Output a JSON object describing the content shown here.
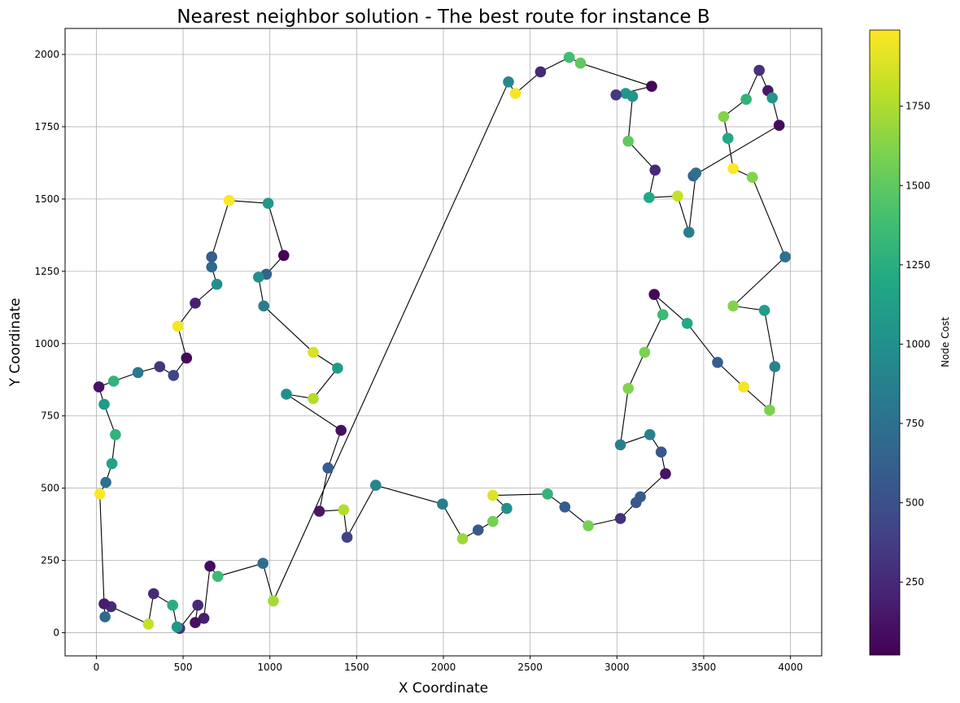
{
  "chart_data": {
    "type": "scatter",
    "title": "Nearest neighbor solution - The best route for instance B",
    "xlabel": "X Coordinate",
    "ylabel": "Y Coordinate",
    "xlim": [
      -180,
      4180
    ],
    "ylim": [
      -80,
      2090
    ],
    "xticks": [
      0,
      500,
      1000,
      1500,
      2000,
      2500,
      3000,
      3500,
      4000
    ],
    "yticks": [
      0,
      250,
      500,
      750,
      1000,
      1250,
      1500,
      1750,
      2000
    ],
    "grid": true,
    "colorbar": {
      "label": "Node Cost",
      "colormap": "viridis",
      "range": [
        20,
        1990
      ],
      "ticks": [
        250,
        500,
        750,
        1000,
        1250,
        1500,
        1750
      ]
    },
    "route": [
      [
        1020,
        110
      ],
      [
        960,
        240
      ],
      [
        700,
        195
      ],
      [
        655,
        230
      ],
      [
        620,
        50
      ],
      [
        570,
        35
      ],
      [
        585,
        95
      ],
      [
        480,
        15
      ],
      [
        465,
        20
      ],
      [
        440,
        95
      ],
      [
        330,
        135
      ],
      [
        300,
        30
      ],
      [
        85,
        90
      ],
      [
        50,
        55
      ],
      [
        45,
        100
      ],
      [
        20,
        480
      ],
      [
        55,
        520
      ],
      [
        90,
        585
      ],
      [
        110,
        685
      ],
      [
        45,
        790
      ],
      [
        15,
        850
      ],
      [
        100,
        870
      ],
      [
        240,
        900
      ],
      [
        365,
        920
      ],
      [
        445,
        890
      ],
      [
        520,
        950
      ],
      [
        470,
        1060
      ],
      [
        570,
        1140
      ],
      [
        695,
        1205
      ],
      [
        665,
        1265
      ],
      [
        665,
        1300
      ],
      [
        765,
        1495
      ],
      [
        990,
        1485
      ],
      [
        1080,
        1305
      ],
      [
        980,
        1240
      ],
      [
        935,
        1230
      ],
      [
        965,
        1130
      ],
      [
        1250,
        970
      ],
      [
        1390,
        915
      ],
      [
        1250,
        810
      ],
      [
        1095,
        825
      ],
      [
        1410,
        700
      ],
      [
        1335,
        570
      ],
      [
        1285,
        420
      ],
      [
        1425,
        425
      ],
      [
        1445,
        330
      ],
      [
        1610,
        510
      ],
      [
        1995,
        445
      ],
      [
        2110,
        325
      ],
      [
        2200,
        355
      ],
      [
        2285,
        385
      ],
      [
        2365,
        430
      ],
      [
        2285,
        475
      ],
      [
        2600,
        480
      ],
      [
        2700,
        435
      ],
      [
        2835,
        370
      ],
      [
        3020,
        395
      ],
      [
        3110,
        450
      ],
      [
        3135,
        470
      ],
      [
        3280,
        550
      ],
      [
        3255,
        625
      ],
      [
        3190,
        685
      ],
      [
        3020,
        650
      ],
      [
        3065,
        845
      ],
      [
        3160,
        970
      ],
      [
        3265,
        1100
      ],
      [
        3215,
        1170
      ],
      [
        3405,
        1070
      ],
      [
        3580,
        935
      ],
      [
        3730,
        850
      ],
      [
        3880,
        770
      ],
      [
        3910,
        920
      ],
      [
        3850,
        1115
      ],
      [
        3670,
        1130
      ],
      [
        3970,
        1300
      ],
      [
        3780,
        1575
      ],
      [
        3670,
        1605
      ],
      [
        3640,
        1710
      ],
      [
        3615,
        1785
      ],
      [
        3745,
        1845
      ],
      [
        3820,
        1945
      ],
      [
        3870,
        1875
      ],
      [
        3895,
        1850
      ],
      [
        3935,
        1755
      ],
      [
        3440,
        1580
      ],
      [
        3455,
        1590
      ],
      [
        3415,
        1385
      ],
      [
        3350,
        1510
      ],
      [
        3185,
        1505
      ],
      [
        3220,
        1600
      ],
      [
        3065,
        1700
      ],
      [
        3090,
        1855
      ],
      [
        3050,
        1865
      ],
      [
        2995,
        1860
      ],
      [
        3200,
        1890
      ],
      [
        2790,
        1970
      ],
      [
        2725,
        1990
      ],
      [
        2560,
        1940
      ],
      [
        2415,
        1865
      ],
      [
        2375,
        1905
      ],
      [
        1020,
        110
      ]
    ],
    "points": [
      {
        "x": 1020,
        "y": 110,
        "cost": 1720
      },
      {
        "x": 960,
        "y": 240,
        "cost": 720
      },
      {
        "x": 700,
        "y": 195,
        "cost": 1350
      },
      {
        "x": 655,
        "y": 230,
        "cost": 80
      },
      {
        "x": 620,
        "y": 50,
        "cost": 180
      },
      {
        "x": 570,
        "y": 35,
        "cost": 90
      },
      {
        "x": 585,
        "y": 95,
        "cost": 250
      },
      {
        "x": 480,
        "y": 15,
        "cost": 300
      },
      {
        "x": 465,
        "y": 20,
        "cost": 1050
      },
      {
        "x": 440,
        "y": 95,
        "cost": 1250
      },
      {
        "x": 330,
        "y": 135,
        "cost": 260
      },
      {
        "x": 300,
        "y": 30,
        "cost": 1820
      },
      {
        "x": 85,
        "y": 90,
        "cost": 260
      },
      {
        "x": 50,
        "y": 55,
        "cost": 700
      },
      {
        "x": 45,
        "y": 100,
        "cost": 180
      },
      {
        "x": 20,
        "y": 480,
        "cost": 1980
      },
      {
        "x": 55,
        "y": 520,
        "cost": 750
      },
      {
        "x": 90,
        "y": 585,
        "cost": 1150
      },
      {
        "x": 110,
        "y": 685,
        "cost": 1300
      },
      {
        "x": 45,
        "y": 790,
        "cost": 1100
      },
      {
        "x": 15,
        "y": 850,
        "cost": 120
      },
      {
        "x": 100,
        "y": 870,
        "cost": 1300
      },
      {
        "x": 240,
        "y": 900,
        "cost": 800
      },
      {
        "x": 365,
        "y": 920,
        "cost": 330
      },
      {
        "x": 445,
        "y": 890,
        "cost": 420
      },
      {
        "x": 520,
        "y": 950,
        "cost": 60
      },
      {
        "x": 470,
        "y": 1060,
        "cost": 1960
      },
      {
        "x": 570,
        "y": 1140,
        "cost": 200
      },
      {
        "x": 695,
        "y": 1205,
        "cost": 1000
      },
      {
        "x": 665,
        "y": 1265,
        "cost": 700
      },
      {
        "x": 665,
        "y": 1300,
        "cost": 600
      },
      {
        "x": 765,
        "y": 1495,
        "cost": 1980
      },
      {
        "x": 990,
        "y": 1485,
        "cost": 1050
      },
      {
        "x": 1080,
        "y": 1305,
        "cost": 40
      },
      {
        "x": 980,
        "y": 1240,
        "cost": 640
      },
      {
        "x": 935,
        "y": 1230,
        "cost": 1000
      },
      {
        "x": 965,
        "y": 1130,
        "cost": 850
      },
      {
        "x": 1250,
        "y": 970,
        "cost": 1870
      },
      {
        "x": 1390,
        "y": 915,
        "cost": 1100
      },
      {
        "x": 1250,
        "y": 810,
        "cost": 1760
      },
      {
        "x": 1095,
        "y": 825,
        "cost": 1000
      },
      {
        "x": 1410,
        "y": 700,
        "cost": 100
      },
      {
        "x": 1335,
        "y": 570,
        "cost": 600
      },
      {
        "x": 1285,
        "y": 420,
        "cost": 150
      },
      {
        "x": 1425,
        "y": 425,
        "cost": 1760
      },
      {
        "x": 1445,
        "y": 330,
        "cost": 400
      },
      {
        "x": 1610,
        "y": 510,
        "cost": 900
      },
      {
        "x": 1995,
        "y": 445,
        "cost": 850
      },
      {
        "x": 2110,
        "y": 325,
        "cost": 1700
      },
      {
        "x": 2200,
        "y": 355,
        "cost": 560
      },
      {
        "x": 2285,
        "y": 385,
        "cost": 1580
      },
      {
        "x": 2365,
        "y": 430,
        "cost": 1000
      },
      {
        "x": 2285,
        "y": 475,
        "cost": 1890
      },
      {
        "x": 2600,
        "y": 480,
        "cost": 1300
      },
      {
        "x": 2700,
        "y": 435,
        "cost": 600
      },
      {
        "x": 2835,
        "y": 370,
        "cost": 1580
      },
      {
        "x": 3020,
        "y": 395,
        "cost": 300
      },
      {
        "x": 3110,
        "y": 450,
        "cost": 560
      },
      {
        "x": 3135,
        "y": 470,
        "cost": 580
      },
      {
        "x": 3280,
        "y": 550,
        "cost": 120
      },
      {
        "x": 3255,
        "y": 625,
        "cost": 560
      },
      {
        "x": 3190,
        "y": 685,
        "cost": 870
      },
      {
        "x": 3020,
        "y": 650,
        "cost": 880
      },
      {
        "x": 3065,
        "y": 845,
        "cost": 1620
      },
      {
        "x": 3160,
        "y": 970,
        "cost": 1600
      },
      {
        "x": 3265,
        "y": 1100,
        "cost": 1350
      },
      {
        "x": 3215,
        "y": 1170,
        "cost": 60
      },
      {
        "x": 3405,
        "y": 1070,
        "cost": 1200
      },
      {
        "x": 3580,
        "y": 935,
        "cost": 600
      },
      {
        "x": 3730,
        "y": 850,
        "cost": 1960
      },
      {
        "x": 3880,
        "y": 770,
        "cost": 1600
      },
      {
        "x": 3910,
        "y": 920,
        "cost": 900
      },
      {
        "x": 3850,
        "y": 1115,
        "cost": 1100
      },
      {
        "x": 3670,
        "y": 1130,
        "cost": 1620
      },
      {
        "x": 3970,
        "y": 1300,
        "cost": 750
      },
      {
        "x": 3780,
        "y": 1575,
        "cost": 1620
      },
      {
        "x": 3670,
        "y": 1605,
        "cost": 1980
      },
      {
        "x": 3640,
        "y": 1710,
        "cost": 1200
      },
      {
        "x": 3615,
        "y": 1785,
        "cost": 1620
      },
      {
        "x": 3745,
        "y": 1845,
        "cost": 1300
      },
      {
        "x": 3820,
        "y": 1945,
        "cost": 300
      },
      {
        "x": 3870,
        "y": 1875,
        "cost": 150
      },
      {
        "x": 3895,
        "y": 1850,
        "cost": 1050
      },
      {
        "x": 3935,
        "y": 1755,
        "cost": 80
      },
      {
        "x": 3440,
        "y": 1580,
        "cost": 650
      },
      {
        "x": 3455,
        "y": 1590,
        "cost": 750
      },
      {
        "x": 3415,
        "y": 1385,
        "cost": 850
      },
      {
        "x": 3350,
        "y": 1510,
        "cost": 1820
      },
      {
        "x": 3185,
        "y": 1505,
        "cost": 1200
      },
      {
        "x": 3220,
        "y": 1600,
        "cost": 250
      },
      {
        "x": 3065,
        "y": 1700,
        "cost": 1500
      },
      {
        "x": 3090,
        "y": 1855,
        "cost": 1050
      },
      {
        "x": 3050,
        "y": 1865,
        "cost": 1050
      },
      {
        "x": 2995,
        "y": 1860,
        "cost": 350
      },
      {
        "x": 3200,
        "y": 1890,
        "cost": 40
      },
      {
        "x": 2790,
        "y": 1970,
        "cost": 1500
      },
      {
        "x": 2725,
        "y": 1990,
        "cost": 1380
      },
      {
        "x": 2560,
        "y": 1940,
        "cost": 250
      },
      {
        "x": 2415,
        "y": 1865,
        "cost": 1970
      },
      {
        "x": 2375,
        "y": 1905,
        "cost": 950
      }
    ]
  }
}
